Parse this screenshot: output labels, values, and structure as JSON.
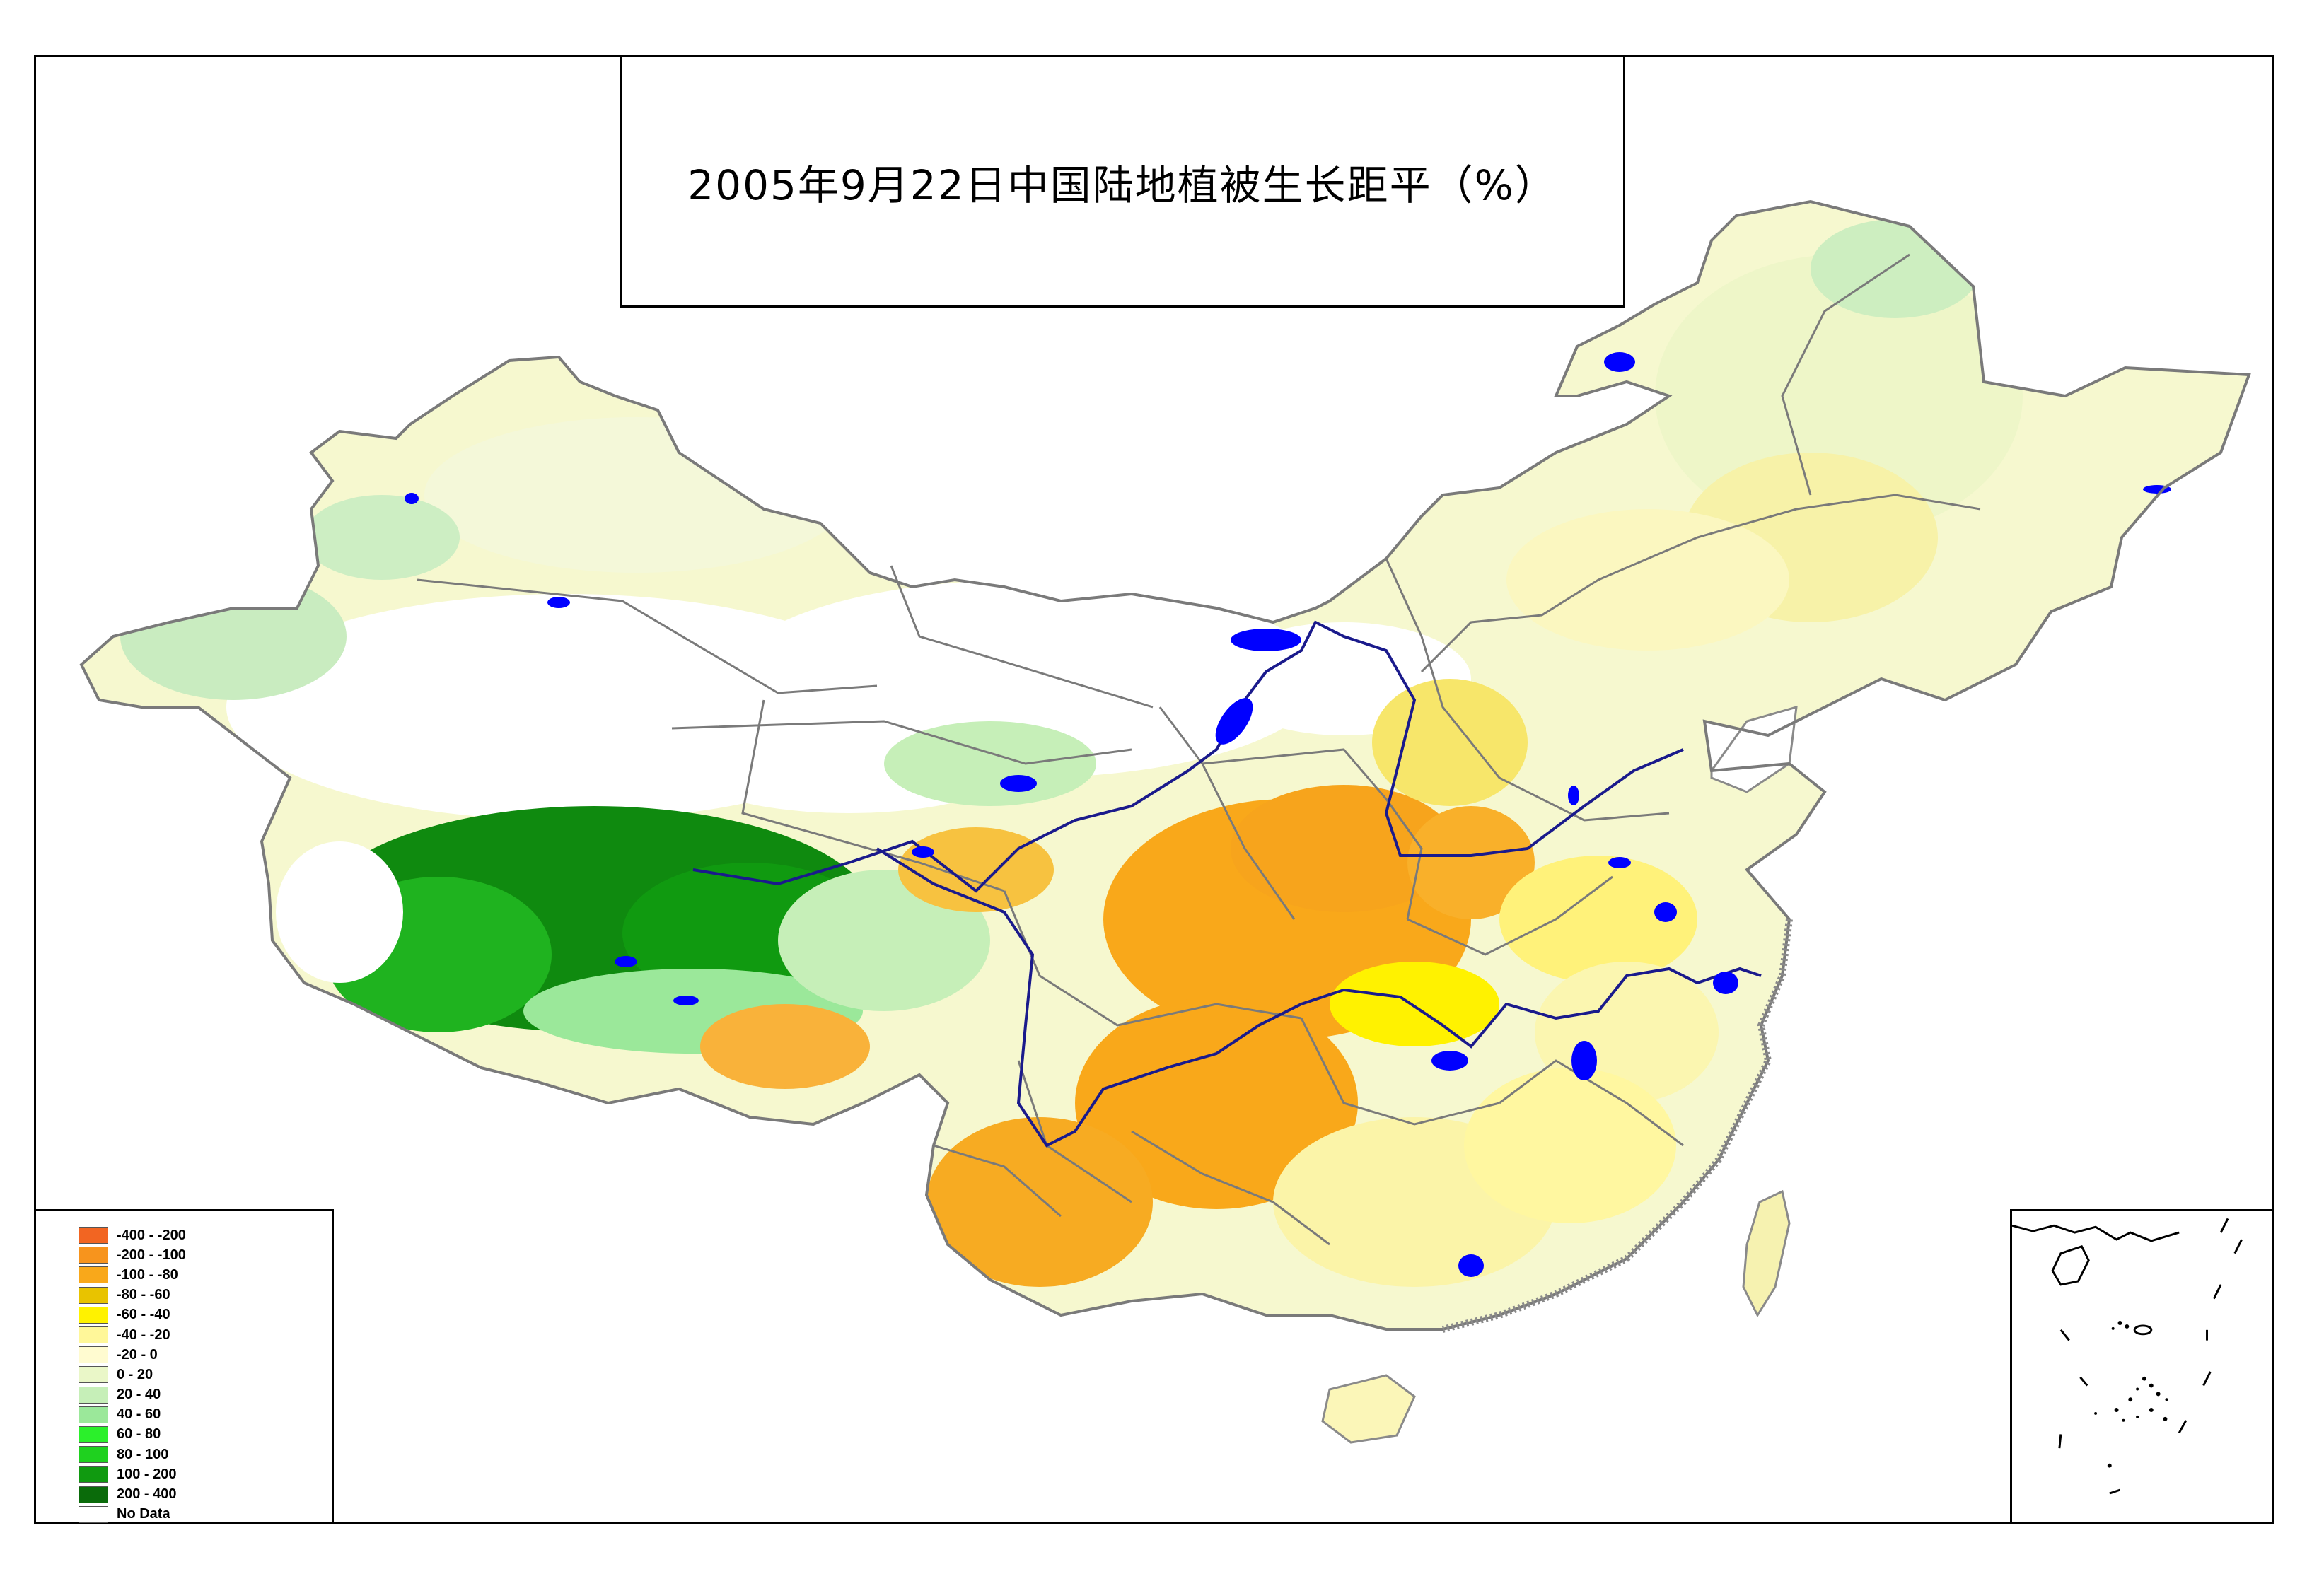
{
  "title": "2005年9月22日中国陆地植被生长距平（%）",
  "legend": {
    "items": [
      {
        "label": "-400 - -200",
        "color": "#f26522"
      },
      {
        "label": "-200 - -100",
        "color": "#f7941d"
      },
      {
        "label": "-100 - -80",
        "color": "#f9a81a"
      },
      {
        "label": "-80 - -60",
        "color": "#e8c300"
      },
      {
        "label": "-60 - -40",
        "color": "#fff200"
      },
      {
        "label": "-40 - -20",
        "color": "#fff799"
      },
      {
        "label": "-20 - 0",
        "color": "#fffbd0"
      },
      {
        "label": "0 - 20",
        "color": "#eaf7c8"
      },
      {
        "label": "20 - 40",
        "color": "#c6efb8"
      },
      {
        "label": "40 - 60",
        "color": "#9be89a"
      },
      {
        "label": "60 - 80",
        "color": "#2bf02b"
      },
      {
        "label": "80 - 100",
        "color": "#1fd11f"
      },
      {
        "label": "100 - 200",
        "color": "#109a10"
      },
      {
        "label": "200 - 400",
        "color": "#0a6b0a"
      },
      {
        "label": "No Data",
        "color": "#ffffff"
      }
    ]
  },
  "colors": {
    "water": "#0000ff",
    "river": "#1a1a8c",
    "boundary": "#7a7a7a",
    "coast": "#8a8a8a"
  }
}
